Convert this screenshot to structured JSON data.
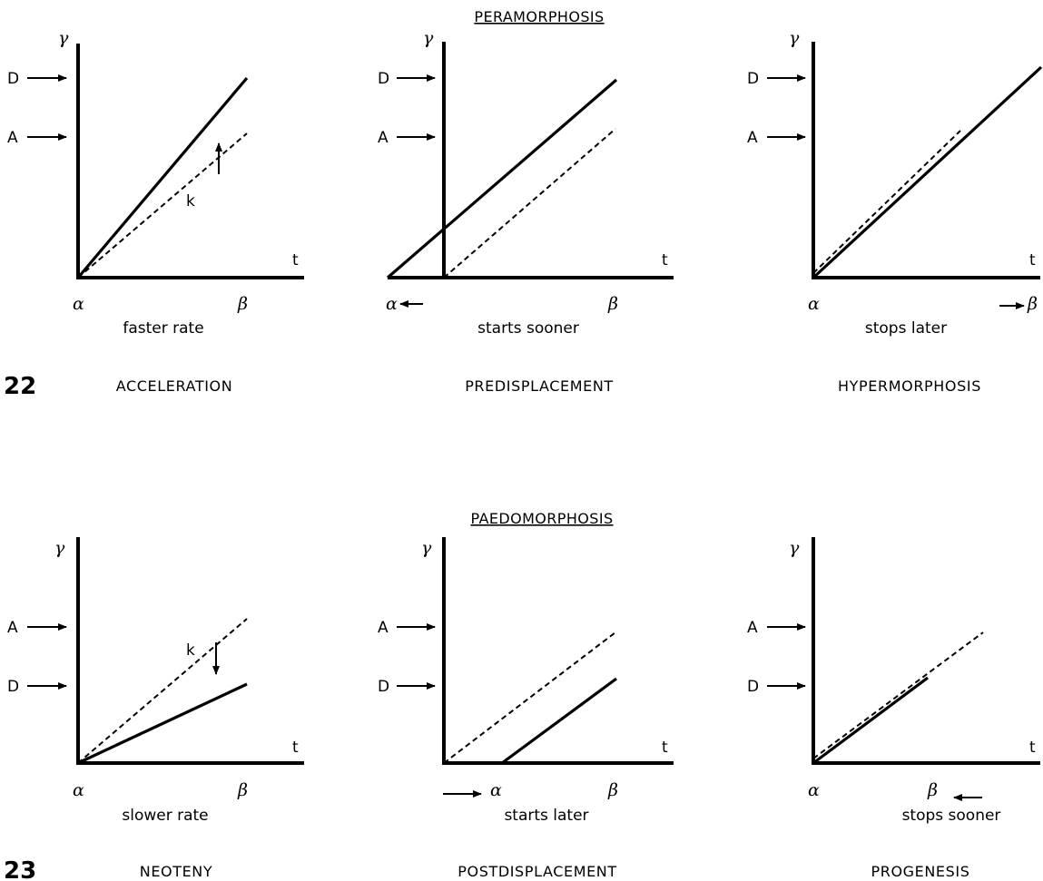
{
  "headings": {
    "peramorphosis": "PERAMORPHOSIS",
    "paedomorphosis": "PAEDOMORPHOSIS"
  },
  "figure_numbers": [
    "22",
    "23"
  ],
  "axis_symbols": {
    "y": "γ",
    "x": "t",
    "start": "α",
    "end": "β",
    "rate": "k",
    "descendant": "D",
    "ancestor": "A"
  },
  "panels": [
    {
      "id": "acceleration",
      "title": "ACCELERATION",
      "caption": "faster rate",
      "row": 1
    },
    {
      "id": "predisplacement",
      "title": "PREDISPLACEMENT",
      "caption": "starts sooner",
      "row": 1
    },
    {
      "id": "hypermorphosis",
      "title": "HYPERMORPHOSIS",
      "caption": "stops later",
      "row": 1
    },
    {
      "id": "neoteny",
      "title": "NEOTENY",
      "caption": "slower rate",
      "row": 2
    },
    {
      "id": "postdisplacement",
      "title": "POSTDISPLACEMENT",
      "caption": "starts later",
      "row": 2
    },
    {
      "id": "progenesis",
      "title": "PROGENESIS",
      "caption": "stops sooner",
      "row": 2
    }
  ]
}
